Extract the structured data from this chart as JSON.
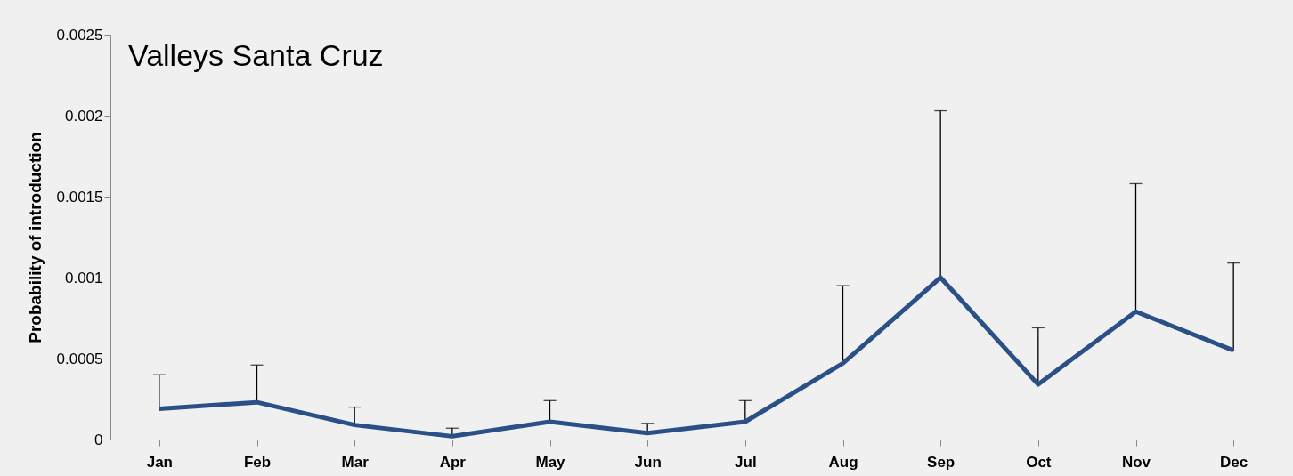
{
  "chart_data": {
    "type": "line",
    "title": "Valleys Santa Cruz",
    "ylabel": "Probability of introduction",
    "categories": [
      "Jan",
      "Feb",
      "Mar",
      "Apr",
      "May",
      "Jun",
      "Jul",
      "Aug",
      "Sep",
      "Oct",
      "Nov",
      "Dec"
    ],
    "series": [
      {
        "color": "#2b5087",
        "values": [
          0.00019,
          0.00023,
          9e-05,
          2e-05,
          0.00011,
          4e-05,
          0.00011,
          0.00047,
          0.001,
          0.00034,
          0.00079,
          0.00055
        ],
        "errors": [
          [
            0.00019,
            0.0004
          ],
          [
            0.00023,
            0.00046
          ],
          [
            9e-05,
            0.0002
          ],
          [
            2e-05,
            7e-05
          ],
          [
            0.00011,
            0.00024
          ],
          [
            4e-05,
            0.0001
          ],
          [
            0.00011,
            0.00024
          ],
          [
            0.00047,
            0.00095
          ],
          [
            0.001,
            0.00203
          ],
          [
            0.00034,
            0.00069
          ],
          [
            0.00079,
            0.00158
          ],
          [
            0.00055,
            0.00109
          ]
        ]
      }
    ],
    "ylim": [
      0,
      0.0025
    ],
    "yticks": [
      0,
      0.0005,
      0.001,
      0.0015,
      0.002,
      0.0025
    ],
    "grid": false,
    "marker": "none",
    "line_style": "solid"
  }
}
